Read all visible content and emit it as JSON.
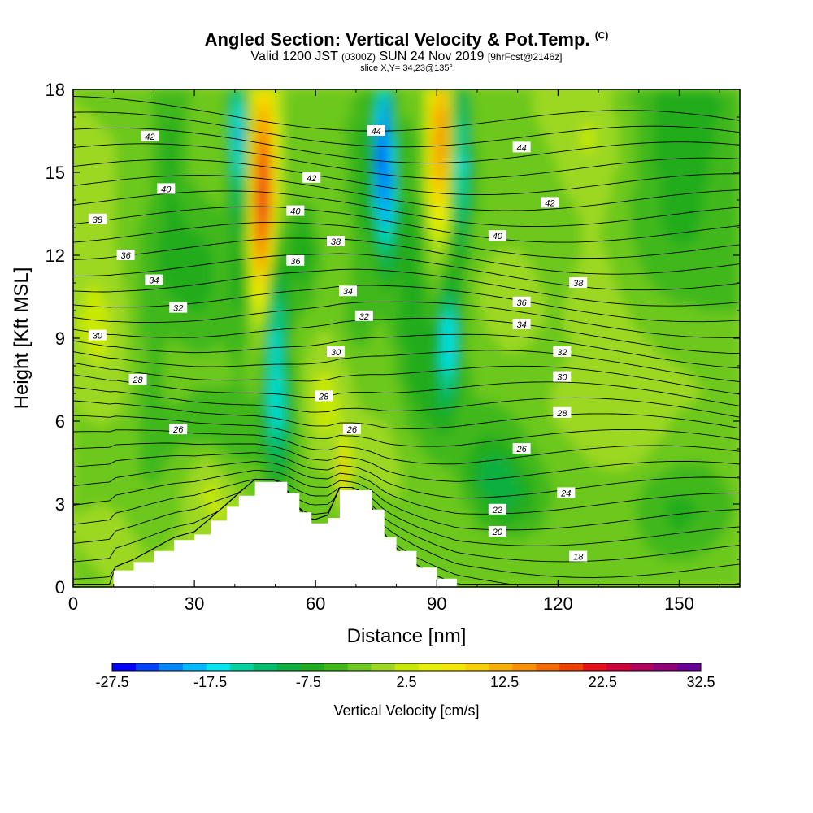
{
  "header": {
    "title": "Angled Section: Vertical Velocity & Pot.Temp.",
    "title_mark": "(C)",
    "valid_prefix": "Valid 1200 JST",
    "valid_zulu": "(0300Z)",
    "valid_date": "SUN 24 Nov 2019",
    "forecast_tag": "[9hrFcst@2146z]",
    "slice": "slice X,Y= 34,23@135°"
  },
  "chart_data": {
    "type": "heatmap",
    "title": "Angled Section: Vertical Velocity & Pot.Temp.",
    "xlabel": "Distance [nm]",
    "ylabel": "Height [Kft MSL]",
    "xlim": [
      0,
      165
    ],
    "ylim": [
      0,
      18
    ],
    "xticks": [
      "0",
      "30",
      "60",
      "90",
      "120",
      "150"
    ],
    "yticks": [
      "0",
      "3",
      "6",
      "9",
      "12",
      "15",
      "18"
    ],
    "colorbar": {
      "label": "Vertical Velocity [cm/s]",
      "tick_labels": [
        "-27.5",
        "-17.5",
        "-7.5",
        "2.5",
        "12.5",
        "22.5",
        "32.5"
      ],
      "min": -27.5,
      "max": 32.5,
      "step": 2.5,
      "colors": [
        "#0000ff",
        "#0044ff",
        "#0088ff",
        "#00bbff",
        "#00e5ee",
        "#00d2a0",
        "#00c070",
        "#10b040",
        "#22ac1f",
        "#40b81a",
        "#6cc81f",
        "#9cd820",
        "#c8e800",
        "#e6f000",
        "#f5e800",
        "#f8d000",
        "#f8b000",
        "#f89000",
        "#f46a00",
        "#f04000",
        "#e8101a",
        "#d0003a",
        "#b00060",
        "#90007a",
        "#6a0096"
      ]
    },
    "terrain": [
      [
        10,
        0.6
      ],
      [
        15,
        0.9
      ],
      [
        20,
        1.3
      ],
      [
        25,
        1.7
      ],
      [
        30,
        1.9
      ],
      [
        34,
        2.4
      ],
      [
        38,
        2.9
      ],
      [
        41,
        3.3
      ],
      [
        45,
        3.8
      ],
      [
        50,
        3.8
      ],
      [
        53,
        3.4
      ],
      [
        56,
        2.7
      ],
      [
        59,
        2.3
      ],
      [
        63,
        2.5
      ],
      [
        66,
        3.5
      ],
      [
        70,
        3.5
      ],
      [
        74,
        2.8
      ],
      [
        77,
        1.8
      ],
      [
        80,
        1.3
      ],
      [
        85,
        0.7
      ],
      [
        90,
        0.3
      ],
      [
        95,
        0
      ]
    ],
    "theta_contours": [
      {
        "label": "18",
        "x": 125,
        "y": 1.1
      },
      {
        "label": "20",
        "x": 105,
        "y": 2.0
      },
      {
        "label": "22",
        "x": 105,
        "y": 2.8
      },
      {
        "label": "24",
        "x": 122,
        "y": 3.4
      },
      {
        "label": "26",
        "x": 26,
        "y": 5.7
      },
      {
        "label": "26",
        "x": 69,
        "y": 5.7
      },
      {
        "label": "26",
        "x": 111,
        "y": 5.0
      },
      {
        "label": "28",
        "x": 16,
        "y": 7.5
      },
      {
        "label": "28",
        "x": 62,
        "y": 6.9
      },
      {
        "label": "28",
        "x": 121,
        "y": 6.3
      },
      {
        "label": "30",
        "x": 6,
        "y": 9.1
      },
      {
        "label": "30",
        "x": 65,
        "y": 8.5
      },
      {
        "label": "30",
        "x": 121,
        "y": 7.6
      },
      {
        "label": "32",
        "x": 26,
        "y": 10.1
      },
      {
        "label": "32",
        "x": 72,
        "y": 9.8
      },
      {
        "label": "32",
        "x": 121,
        "y": 8.5
      },
      {
        "label": "34",
        "x": 20,
        "y": 11.1
      },
      {
        "label": "34",
        "x": 68,
        "y": 10.7
      },
      {
        "label": "34",
        "x": 111,
        "y": 9.5
      },
      {
        "label": "36",
        "x": 13,
        "y": 12.0
      },
      {
        "label": "36",
        "x": 55,
        "y": 11.8
      },
      {
        "label": "36",
        "x": 111,
        "y": 10.3
      },
      {
        "label": "38",
        "x": 6,
        "y": 13.3
      },
      {
        "label": "38",
        "x": 65,
        "y": 12.5
      },
      {
        "label": "38",
        "x": 125,
        "y": 11.0
      },
      {
        "label": "40",
        "x": 23,
        "y": 14.4
      },
      {
        "label": "40",
        "x": 55,
        "y": 13.6
      },
      {
        "label": "40",
        "x": 105,
        "y": 12.7
      },
      {
        "label": "42",
        "x": 19,
        "y": 16.3
      },
      {
        "label": "42",
        "x": 59,
        "y": 14.8
      },
      {
        "label": "42",
        "x": 118,
        "y": 13.9
      },
      {
        "label": "44",
        "x": 75,
        "y": 16.5
      },
      {
        "label": "44",
        "x": 111,
        "y": 15.9
      }
    ]
  }
}
